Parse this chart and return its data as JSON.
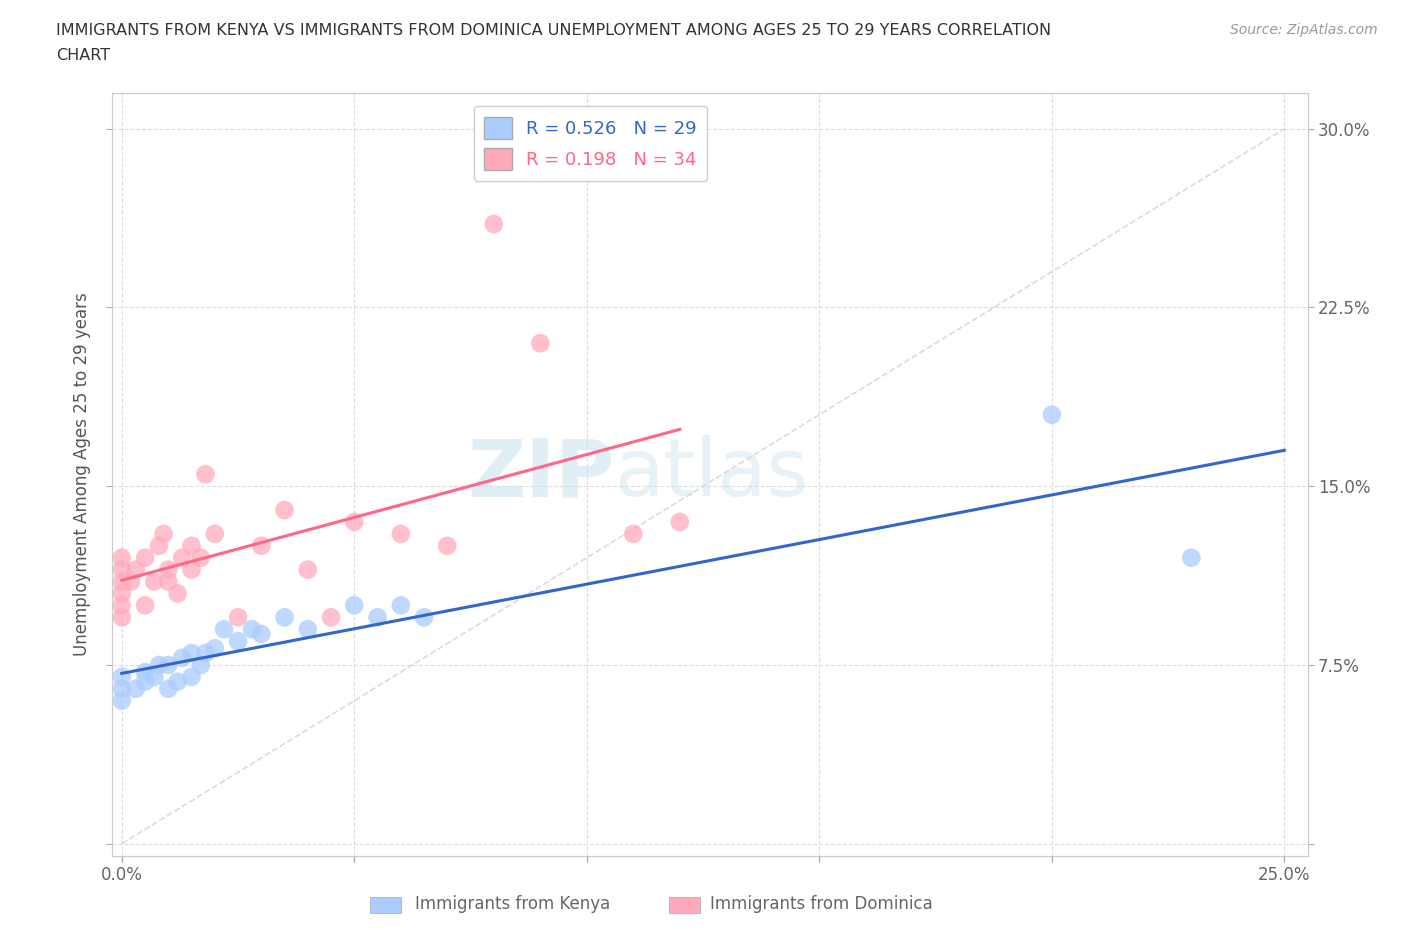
{
  "title_line1": "IMMIGRANTS FROM KENYA VS IMMIGRANTS FROM DOMINICA UNEMPLOYMENT AMONG AGES 25 TO 29 YEARS CORRELATION",
  "title_line2": "CHART",
  "source_text": "Source: ZipAtlas.com",
  "ylabel": "Unemployment Among Ages 25 to 29 years",
  "xlim": [
    -0.002,
    0.255
  ],
  "ylim": [
    -0.005,
    0.315
  ],
  "xticks": [
    0.0,
    0.05,
    0.1,
    0.15,
    0.2,
    0.25
  ],
  "yticks": [
    0.0,
    0.075,
    0.15,
    0.225,
    0.3
  ],
  "xticklabels_left": [
    "0.0%",
    "",
    "",
    "",
    "",
    ""
  ],
  "xticklabels_right": [
    "",
    "",
    "",
    "",
    "",
    "25.0%"
  ],
  "yticklabels_right": [
    "",
    "7.5%",
    "15.0%",
    "22.5%",
    "30.0%"
  ],
  "kenya_color": "#aaccff",
  "dominica_color": "#ffaabb",
  "kenya_line_color": "#3366cc",
  "dominica_line_color": "#ff6688",
  "legend_R_kenya": "0.526",
  "legend_N_kenya": "29",
  "legend_R_dominica": "0.198",
  "legend_N_dominica": "34",
  "kenya_x": [
    0.0,
    0.0,
    0.0,
    0.003,
    0.005,
    0.005,
    0.007,
    0.008,
    0.01,
    0.01,
    0.012,
    0.013,
    0.015,
    0.015,
    0.017,
    0.018,
    0.02,
    0.022,
    0.025,
    0.028,
    0.03,
    0.035,
    0.04,
    0.05,
    0.055,
    0.06,
    0.065,
    0.2,
    0.23
  ],
  "kenya_y": [
    0.06,
    0.065,
    0.07,
    0.065,
    0.068,
    0.072,
    0.07,
    0.075,
    0.065,
    0.075,
    0.068,
    0.078,
    0.07,
    0.08,
    0.075,
    0.08,
    0.082,
    0.09,
    0.085,
    0.09,
    0.088,
    0.095,
    0.09,
    0.1,
    0.095,
    0.1,
    0.095,
    0.18,
    0.12
  ],
  "dominica_x": [
    0.0,
    0.0,
    0.0,
    0.0,
    0.0,
    0.0,
    0.002,
    0.003,
    0.005,
    0.005,
    0.007,
    0.008,
    0.009,
    0.01,
    0.01,
    0.012,
    0.013,
    0.015,
    0.015,
    0.017,
    0.018,
    0.02,
    0.025,
    0.03,
    0.035,
    0.04,
    0.045,
    0.05,
    0.06,
    0.07,
    0.08,
    0.09,
    0.11,
    0.12
  ],
  "dominica_y": [
    0.095,
    0.1,
    0.105,
    0.11,
    0.115,
    0.12,
    0.11,
    0.115,
    0.1,
    0.12,
    0.11,
    0.125,
    0.13,
    0.11,
    0.115,
    0.105,
    0.12,
    0.115,
    0.125,
    0.12,
    0.155,
    0.13,
    0.095,
    0.125,
    0.14,
    0.115,
    0.095,
    0.135,
    0.13,
    0.125,
    0.26,
    0.21,
    0.13,
    0.135
  ],
  "watermark_zip": "ZIP",
  "watermark_atlas": "atlas",
  "bg_color": "#ffffff",
  "grid_color": "#dddddd",
  "diagonal_color": "#cccccc"
}
